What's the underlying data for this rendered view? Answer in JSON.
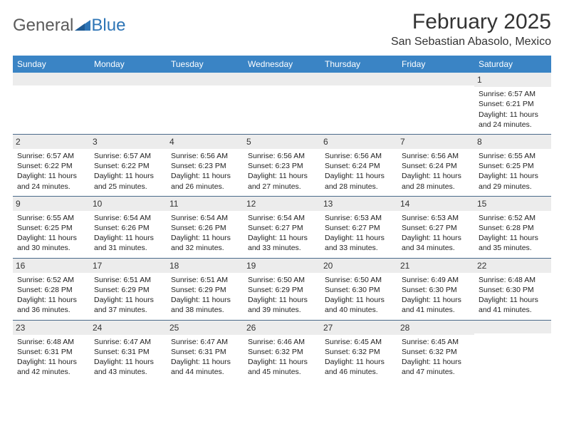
{
  "brand": {
    "part1": "General",
    "part2": "Blue"
  },
  "title": "February 2025",
  "location": "San Sebastian Abasolo, Mexico",
  "colors": {
    "header_bg": "#3a84c5",
    "header_text": "#ffffff",
    "daynum_bg": "#ececec",
    "border": "#4a6a8a",
    "logo_gray": "#5a5a5a",
    "logo_blue": "#2e75b6"
  },
  "weekdays": [
    "Sunday",
    "Monday",
    "Tuesday",
    "Wednesday",
    "Thursday",
    "Friday",
    "Saturday"
  ],
  "weeks": [
    [
      {
        "day": "",
        "sunrise": "",
        "sunset": "",
        "daylight": ""
      },
      {
        "day": "",
        "sunrise": "",
        "sunset": "",
        "daylight": ""
      },
      {
        "day": "",
        "sunrise": "",
        "sunset": "",
        "daylight": ""
      },
      {
        "day": "",
        "sunrise": "",
        "sunset": "",
        "daylight": ""
      },
      {
        "day": "",
        "sunrise": "",
        "sunset": "",
        "daylight": ""
      },
      {
        "day": "",
        "sunrise": "",
        "sunset": "",
        "daylight": ""
      },
      {
        "day": "1",
        "sunrise": "Sunrise: 6:57 AM",
        "sunset": "Sunset: 6:21 PM",
        "daylight": "Daylight: 11 hours and 24 minutes."
      }
    ],
    [
      {
        "day": "2",
        "sunrise": "Sunrise: 6:57 AM",
        "sunset": "Sunset: 6:22 PM",
        "daylight": "Daylight: 11 hours and 24 minutes."
      },
      {
        "day": "3",
        "sunrise": "Sunrise: 6:57 AM",
        "sunset": "Sunset: 6:22 PM",
        "daylight": "Daylight: 11 hours and 25 minutes."
      },
      {
        "day": "4",
        "sunrise": "Sunrise: 6:56 AM",
        "sunset": "Sunset: 6:23 PM",
        "daylight": "Daylight: 11 hours and 26 minutes."
      },
      {
        "day": "5",
        "sunrise": "Sunrise: 6:56 AM",
        "sunset": "Sunset: 6:23 PM",
        "daylight": "Daylight: 11 hours and 27 minutes."
      },
      {
        "day": "6",
        "sunrise": "Sunrise: 6:56 AM",
        "sunset": "Sunset: 6:24 PM",
        "daylight": "Daylight: 11 hours and 28 minutes."
      },
      {
        "day": "7",
        "sunrise": "Sunrise: 6:56 AM",
        "sunset": "Sunset: 6:24 PM",
        "daylight": "Daylight: 11 hours and 28 minutes."
      },
      {
        "day": "8",
        "sunrise": "Sunrise: 6:55 AM",
        "sunset": "Sunset: 6:25 PM",
        "daylight": "Daylight: 11 hours and 29 minutes."
      }
    ],
    [
      {
        "day": "9",
        "sunrise": "Sunrise: 6:55 AM",
        "sunset": "Sunset: 6:25 PM",
        "daylight": "Daylight: 11 hours and 30 minutes."
      },
      {
        "day": "10",
        "sunrise": "Sunrise: 6:54 AM",
        "sunset": "Sunset: 6:26 PM",
        "daylight": "Daylight: 11 hours and 31 minutes."
      },
      {
        "day": "11",
        "sunrise": "Sunrise: 6:54 AM",
        "sunset": "Sunset: 6:26 PM",
        "daylight": "Daylight: 11 hours and 32 minutes."
      },
      {
        "day": "12",
        "sunrise": "Sunrise: 6:54 AM",
        "sunset": "Sunset: 6:27 PM",
        "daylight": "Daylight: 11 hours and 33 minutes."
      },
      {
        "day": "13",
        "sunrise": "Sunrise: 6:53 AM",
        "sunset": "Sunset: 6:27 PM",
        "daylight": "Daylight: 11 hours and 33 minutes."
      },
      {
        "day": "14",
        "sunrise": "Sunrise: 6:53 AM",
        "sunset": "Sunset: 6:27 PM",
        "daylight": "Daylight: 11 hours and 34 minutes."
      },
      {
        "day": "15",
        "sunrise": "Sunrise: 6:52 AM",
        "sunset": "Sunset: 6:28 PM",
        "daylight": "Daylight: 11 hours and 35 minutes."
      }
    ],
    [
      {
        "day": "16",
        "sunrise": "Sunrise: 6:52 AM",
        "sunset": "Sunset: 6:28 PM",
        "daylight": "Daylight: 11 hours and 36 minutes."
      },
      {
        "day": "17",
        "sunrise": "Sunrise: 6:51 AM",
        "sunset": "Sunset: 6:29 PM",
        "daylight": "Daylight: 11 hours and 37 minutes."
      },
      {
        "day": "18",
        "sunrise": "Sunrise: 6:51 AM",
        "sunset": "Sunset: 6:29 PM",
        "daylight": "Daylight: 11 hours and 38 minutes."
      },
      {
        "day": "19",
        "sunrise": "Sunrise: 6:50 AM",
        "sunset": "Sunset: 6:29 PM",
        "daylight": "Daylight: 11 hours and 39 minutes."
      },
      {
        "day": "20",
        "sunrise": "Sunrise: 6:50 AM",
        "sunset": "Sunset: 6:30 PM",
        "daylight": "Daylight: 11 hours and 40 minutes."
      },
      {
        "day": "21",
        "sunrise": "Sunrise: 6:49 AM",
        "sunset": "Sunset: 6:30 PM",
        "daylight": "Daylight: 11 hours and 41 minutes."
      },
      {
        "day": "22",
        "sunrise": "Sunrise: 6:48 AM",
        "sunset": "Sunset: 6:30 PM",
        "daylight": "Daylight: 11 hours and 41 minutes."
      }
    ],
    [
      {
        "day": "23",
        "sunrise": "Sunrise: 6:48 AM",
        "sunset": "Sunset: 6:31 PM",
        "daylight": "Daylight: 11 hours and 42 minutes."
      },
      {
        "day": "24",
        "sunrise": "Sunrise: 6:47 AM",
        "sunset": "Sunset: 6:31 PM",
        "daylight": "Daylight: 11 hours and 43 minutes."
      },
      {
        "day": "25",
        "sunrise": "Sunrise: 6:47 AM",
        "sunset": "Sunset: 6:31 PM",
        "daylight": "Daylight: 11 hours and 44 minutes."
      },
      {
        "day": "26",
        "sunrise": "Sunrise: 6:46 AM",
        "sunset": "Sunset: 6:32 PM",
        "daylight": "Daylight: 11 hours and 45 minutes."
      },
      {
        "day": "27",
        "sunrise": "Sunrise: 6:45 AM",
        "sunset": "Sunset: 6:32 PM",
        "daylight": "Daylight: 11 hours and 46 minutes."
      },
      {
        "day": "28",
        "sunrise": "Sunrise: 6:45 AM",
        "sunset": "Sunset: 6:32 PM",
        "daylight": "Daylight: 11 hours and 47 minutes."
      },
      {
        "day": "",
        "sunrise": "",
        "sunset": "",
        "daylight": ""
      }
    ]
  ]
}
